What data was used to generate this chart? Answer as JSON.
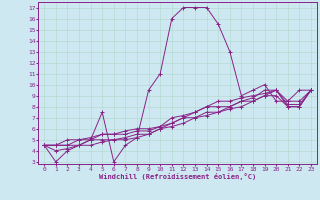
{
  "xlabel": "Windchill (Refroidissement éolien,°C)",
  "bg_color": "#cde8f0",
  "grid_color": "#b0d8cc",
  "line_color": "#882288",
  "xlim": [
    -0.5,
    23.5
  ],
  "ylim": [
    2.8,
    17.5
  ],
  "xticks": [
    0,
    1,
    2,
    3,
    4,
    5,
    6,
    7,
    8,
    9,
    10,
    11,
    12,
    13,
    14,
    15,
    16,
    17,
    18,
    19,
    20,
    21,
    22,
    23
  ],
  "yticks": [
    3,
    4,
    5,
    6,
    7,
    8,
    9,
    10,
    11,
    12,
    13,
    14,
    15,
    16,
    17
  ],
  "lines": [
    {
      "x": [
        0,
        1,
        2,
        3,
        4,
        5,
        6,
        7,
        8,
        9,
        10,
        11,
        12,
        13,
        14,
        15,
        16,
        17,
        18,
        19,
        20,
        21,
        22,
        23
      ],
      "y": [
        4.5,
        3.0,
        4.0,
        4.5,
        5.0,
        7.5,
        3.0,
        4.5,
        5.2,
        9.5,
        11.0,
        16.0,
        17.0,
        17.0,
        17.0,
        15.5,
        13.0,
        9.0,
        9.5,
        10.0,
        8.5,
        8.5,
        9.5,
        9.5
      ]
    },
    {
      "x": [
        0,
        1,
        2,
        3,
        4,
        5,
        6,
        7,
        8,
        9,
        10,
        11,
        12,
        13,
        14,
        15,
        16,
        17,
        18,
        19,
        20,
        21,
        22,
        23
      ],
      "y": [
        4.5,
        4.5,
        4.5,
        4.5,
        4.5,
        4.8,
        5.0,
        5.0,
        5.2,
        5.5,
        6.0,
        6.2,
        6.5,
        7.0,
        7.2,
        7.5,
        7.8,
        8.0,
        8.5,
        9.0,
        9.0,
        8.0,
        8.0,
        9.5
      ]
    },
    {
      "x": [
        0,
        1,
        2,
        3,
        4,
        5,
        6,
        7,
        8,
        9,
        10,
        11,
        12,
        13,
        14,
        15,
        16,
        17,
        18,
        19,
        20,
        21,
        22,
        23
      ],
      "y": [
        4.5,
        4.0,
        4.2,
        4.5,
        5.0,
        5.0,
        5.0,
        5.2,
        5.5,
        5.5,
        6.0,
        6.5,
        7.0,
        7.0,
        7.5,
        7.5,
        8.0,
        8.5,
        8.5,
        9.0,
        9.5,
        8.0,
        8.0,
        9.5
      ]
    },
    {
      "x": [
        0,
        1,
        2,
        3,
        4,
        5,
        6,
        7,
        8,
        9,
        10,
        11,
        12,
        13,
        14,
        15,
        16,
        17,
        18,
        19,
        20,
        21,
        22,
        23
      ],
      "y": [
        4.5,
        4.5,
        4.5,
        5.0,
        5.0,
        5.5,
        5.5,
        5.5,
        5.8,
        5.8,
        6.2,
        6.5,
        7.0,
        7.5,
        8.0,
        8.0,
        8.0,
        8.5,
        8.8,
        9.5,
        9.5,
        8.5,
        8.5,
        9.5
      ]
    },
    {
      "x": [
        0,
        1,
        2,
        3,
        4,
        5,
        6,
        7,
        8,
        9,
        10,
        11,
        12,
        13,
        14,
        15,
        16,
        17,
        18,
        19,
        20,
        21,
        22,
        23
      ],
      "y": [
        4.5,
        4.5,
        5.0,
        5.0,
        5.2,
        5.5,
        5.5,
        5.8,
        6.0,
        6.0,
        6.2,
        7.0,
        7.2,
        7.5,
        8.0,
        8.5,
        8.5,
        8.8,
        9.0,
        9.2,
        9.5,
        8.2,
        8.2,
        9.5
      ]
    }
  ]
}
